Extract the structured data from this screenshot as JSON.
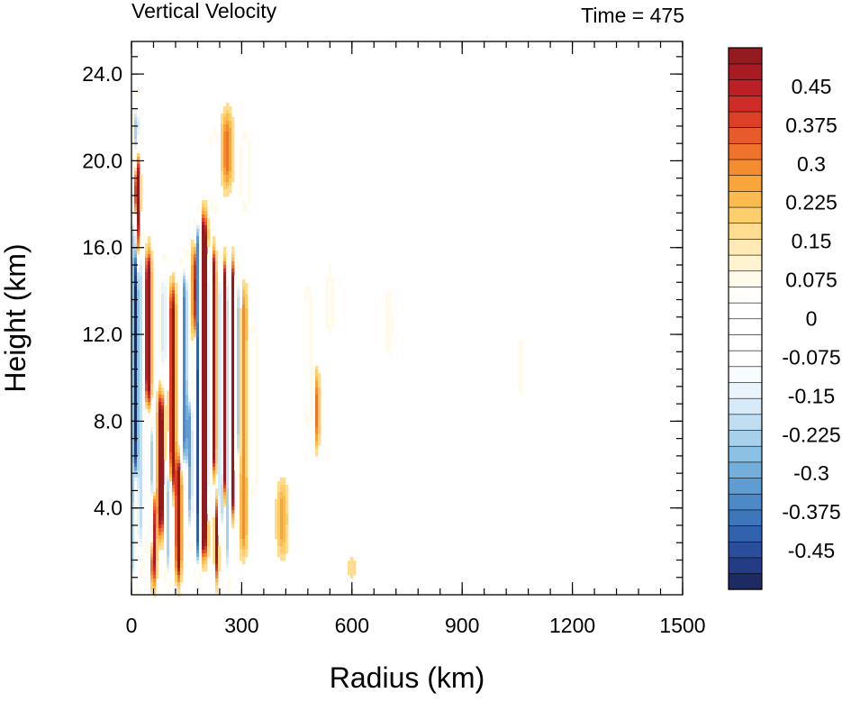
{
  "chart_data": {
    "type": "heatmap",
    "title": "Vertical Velocity",
    "subtitle": "Time = 475",
    "xlabel": "Radius (km)",
    "ylabel": "Height (km)",
    "xlim": [
      0,
      1500
    ],
    "ylim": [
      0,
      25.5
    ],
    "x_ticks": [
      {
        "value": 0,
        "label": "0"
      },
      {
        "value": 300,
        "label": "300"
      },
      {
        "value": 600,
        "label": "600"
      },
      {
        "value": 900,
        "label": "900"
      },
      {
        "value": 1200,
        "label": "1200"
      },
      {
        "value": 1500,
        "label": "1500"
      }
    ],
    "x_minor_step": 60,
    "y_ticks": [
      {
        "value": 4,
        "label": "4.0"
      },
      {
        "value": 8,
        "label": "8.0"
      },
      {
        "value": 12,
        "label": "12.0"
      },
      {
        "value": 16,
        "label": "16.0"
      },
      {
        "value": 20,
        "label": "20.0"
      },
      {
        "value": 24,
        "label": "24.0"
      }
    ],
    "y_minor_step": 0.8,
    "colorbar": {
      "min": -0.525,
      "max": 0.525,
      "step": 0.025,
      "labels": [
        {
          "value": 0.45,
          "label": "0.45"
        },
        {
          "value": 0.375,
          "label": "0.375"
        },
        {
          "value": 0.3,
          "label": "0.3"
        },
        {
          "value": 0.225,
          "label": "0.225"
        },
        {
          "value": 0.15,
          "label": "0.15"
        },
        {
          "value": 0.075,
          "label": "0.075"
        },
        {
          "value": 0,
          "label": "0"
        },
        {
          "value": -0.075,
          "label": "-0.075"
        },
        {
          "value": -0.15,
          "label": "-0.15"
        },
        {
          "value": -0.225,
          "label": "-0.225"
        },
        {
          "value": -0.3,
          "label": "-0.3"
        },
        {
          "value": -0.375,
          "label": "-0.375"
        },
        {
          "value": -0.45,
          "label": "-0.45"
        }
      ],
      "colors": [
        "#1e2b63",
        "#233c84",
        "#2a4e9b",
        "#3262ad",
        "#3d76bb",
        "#4c89c6",
        "#5f9cd1",
        "#74afdb",
        "#8cc0e4",
        "#a6d0ec",
        "#bfdef2",
        "#d6eaf7",
        "#eaf4fb",
        "#f9fcfe",
        "#ffffff",
        "#ffffff",
        "#ffffff",
        "#ffffff",
        "#fffef9",
        "#fffaea",
        "#fff3d2",
        "#ffe9b4",
        "#ffdd90",
        "#fece6c",
        "#fbbb4f",
        "#f8a53c",
        "#f48c32",
        "#ef722d",
        "#e75a2b",
        "#dc4128",
        "#cf2c27",
        "#bd1f26",
        "#a81b23",
        "#931a1e"
      ]
    },
    "features": [
      {
        "r": 10,
        "dr": 9,
        "z0": 0.5,
        "z1": 17.5,
        "w": -0.5
      },
      {
        "r": 14,
        "dr": 7,
        "z0": 19.5,
        "z1": 22.5,
        "w": -0.4
      },
      {
        "r": 16,
        "dr": 6,
        "z0": 15.5,
        "z1": 20.5,
        "w": 0.52
      },
      {
        "r": 12,
        "dr": 5,
        "z0": 0.8,
        "z1": 5.5,
        "w": 0.5
      },
      {
        "r": 28,
        "dr": 10,
        "z0": 2,
        "z1": 16,
        "w": -0.25
      },
      {
        "r": 45,
        "dr": 8,
        "z0": 9,
        "z1": 15.5,
        "w": 0.45
      },
      {
        "r": 55,
        "dr": 7,
        "z0": 2,
        "z1": 8,
        "w": -0.3
      },
      {
        "r": 60,
        "dr": 7,
        "z0": 0.8,
        "z1": 4.5,
        "w": 0.4
      },
      {
        "r": 80,
        "dr": 8,
        "z0": 3,
        "z1": 9,
        "w": 0.45
      },
      {
        "r": 88,
        "dr": 7,
        "z0": 10,
        "z1": 15,
        "w": -0.3
      },
      {
        "r": 100,
        "dr": 7,
        "z0": 0.8,
        "z1": 6,
        "w": -0.3
      },
      {
        "r": 112,
        "dr": 8,
        "z0": 5,
        "z1": 14,
        "w": 0.35
      },
      {
        "r": 128,
        "dr": 7,
        "z0": 1,
        "z1": 6,
        "w": 0.45
      },
      {
        "r": 145,
        "dr": 9,
        "z0": 6,
        "z1": 15,
        "w": -0.4
      },
      {
        "r": 160,
        "dr": 8,
        "z0": 3,
        "z1": 9,
        "w": -0.35
      },
      {
        "r": 172,
        "dr": 6,
        "z0": 12,
        "z1": 16,
        "w": 0.4
      },
      {
        "r": 182,
        "dr": 8,
        "z0": 1.5,
        "z1": 17,
        "w": -0.52
      },
      {
        "r": 196,
        "dr": 10,
        "z0": 2,
        "z1": 17.2,
        "w": 0.52
      },
      {
        "r": 212,
        "dr": 6,
        "z0": 4,
        "z1": 15.5,
        "w": -0.35
      },
      {
        "r": 224,
        "dr": 6,
        "z0": 6,
        "z1": 15.5,
        "w": 0.45
      },
      {
        "r": 232,
        "dr": 5,
        "z0": 1,
        "z1": 4,
        "w": 0.35
      },
      {
        "r": 243,
        "dr": 5,
        "z0": 3,
        "z1": 15,
        "w": -0.45
      },
      {
        "r": 253,
        "dr": 5,
        "z0": 5,
        "z1": 15,
        "w": 0.45
      },
      {
        "r": 264,
        "dr": 4,
        "z0": 1,
        "z1": 15,
        "w": -0.5
      },
      {
        "r": 274,
        "dr": 4,
        "z0": 4,
        "z1": 15,
        "w": 0.5
      },
      {
        "r": 290,
        "dr": 6,
        "z0": 6,
        "z1": 14.5,
        "w": -0.3
      },
      {
        "r": 305,
        "dr": 10,
        "z0": 2,
        "z1": 14,
        "w": 0.15
      },
      {
        "r": 330,
        "dr": 12,
        "z0": 5,
        "z1": 12,
        "w": -0.12
      },
      {
        "r": 260,
        "dr": 14,
        "z0": 19,
        "z1": 22,
        "w": 0.18
      },
      {
        "r": 225,
        "dr": 12,
        "z0": 18,
        "z1": 21,
        "w": -0.12
      },
      {
        "r": 310,
        "dr": 12,
        "z0": 18,
        "z1": 21,
        "w": -0.1
      },
      {
        "r": 410,
        "dr": 14,
        "z0": 2,
        "z1": 5,
        "w": 0.12
      },
      {
        "r": 505,
        "dr": 6,
        "z0": 7,
        "z1": 10,
        "w": 0.18
      },
      {
        "r": 480,
        "dr": 12,
        "z0": 8,
        "z1": 14,
        "w": -0.08
      },
      {
        "r": 540,
        "dr": 10,
        "z0": 12,
        "z1": 15,
        "w": -0.06
      },
      {
        "r": 700,
        "dr": 12,
        "z0": 11,
        "z1": 14,
        "w": -0.05
      },
      {
        "r": 1060,
        "dr": 14,
        "z0": 9,
        "z1": 12,
        "w": -0.04
      },
      {
        "r": 600,
        "dr": 20,
        "z0": 0.5,
        "z1": 2,
        "w": 0.04
      }
    ]
  }
}
